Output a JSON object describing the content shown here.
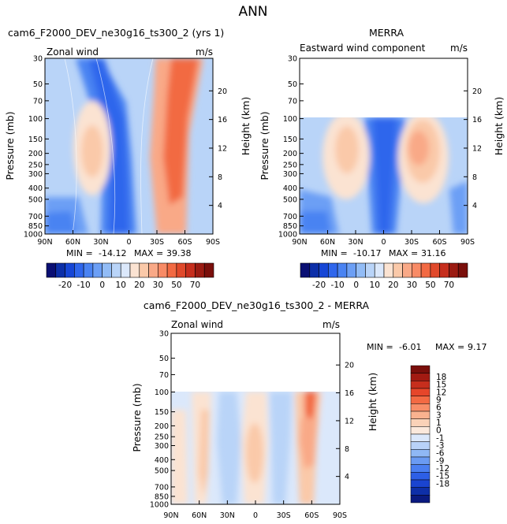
{
  "figure_title": "ANN",
  "chart_data": [
    {
      "type": "heatmap",
      "title": "cam6_F2000_DEV_ne30g16_ts300_2 (yrs 1)",
      "left_label": "Zonal wind",
      "right_label": "m/s",
      "ylabel": "Pressure (mb)",
      "y2label": "Height (km)",
      "x_ticks": [
        "90N",
        "60N",
        "30N",
        "0",
        "30S",
        "60S",
        "90S"
      ],
      "x_values": [
        90,
        60,
        30,
        0,
        -30,
        -60,
        -90
      ],
      "y_ticks": [
        "30",
        "50",
        "70",
        "100",
        "150",
        "200",
        "250",
        "300",
        "400",
        "500",
        "700",
        "850",
        "1000"
      ],
      "y_values": [
        30,
        50,
        70,
        100,
        150,
        200,
        250,
        300,
        400,
        500,
        700,
        850,
        1000
      ],
      "height_ticks": [
        "4",
        "8",
        "12",
        "16",
        "20"
      ],
      "height_values": [
        4,
        8,
        12,
        16,
        20
      ],
      "ylim": [
        30,
        1000
      ],
      "y_scale": "log",
      "data_top": 30,
      "stats": {
        "min_label": "MIN =",
        "min": "-14.12",
        "max_label": "MAX =",
        "max": "39.38"
      },
      "features": [
        {
          "lat": 32,
          "p": 200,
          "value": 17
        },
        {
          "lat": -50,
          "p": 150,
          "value": 32
        },
        {
          "lat": -55,
          "p": 50,
          "value": 39
        },
        {
          "lat": 0,
          "p": 100,
          "value": -10
        },
        {
          "lat": 62,
          "p": 300,
          "value": 8
        },
        {
          "lat": -62,
          "p": 700,
          "value": 9
        }
      ]
    },
    {
      "type": "heatmap",
      "title": "MERRA",
      "left_label": "Eastward wind component",
      "right_label": "m/s",
      "ylabel": "Pressure (mb)",
      "y2label": "Height (km)",
      "x_ticks": [
        "90N",
        "60N",
        "30N",
        "0",
        "30S",
        "60S",
        "90S"
      ],
      "x_values": [
        90,
        60,
        30,
        0,
        -30,
        -60,
        -90
      ],
      "y_ticks": [
        "30",
        "50",
        "70",
        "100",
        "150",
        "200",
        "250",
        "300",
        "400",
        "500",
        "700",
        "850",
        "1000"
      ],
      "y_values": [
        30,
        50,
        70,
        100,
        150,
        200,
        250,
        300,
        400,
        500,
        700,
        850,
        1000
      ],
      "height_ticks": [
        "4",
        "8",
        "12",
        "16",
        "20"
      ],
      "height_values": [
        4,
        8,
        12,
        16,
        20
      ],
      "ylim": [
        30,
        1000
      ],
      "y_scale": "log",
      "data_top": 100,
      "stats": {
        "min_label": "MIN =",
        "min": "-10.17",
        "max_label": "MAX =",
        "max": "31.16"
      },
      "features": [
        {
          "lat": 30,
          "p": 200,
          "value": 22
        },
        {
          "lat": -35,
          "p": 200,
          "value": 28
        },
        {
          "lat": 0,
          "p": 150,
          "value": -8
        },
        {
          "lat": 60,
          "p": 400,
          "value": 6
        },
        {
          "lat": -60,
          "p": 600,
          "value": 7
        }
      ]
    },
    {
      "type": "heatmap",
      "title": "cam6_F2000_DEV_ne30g16_ts300_2 - MERRA",
      "left_label": "Zonal wind",
      "right_label": "m/s",
      "ylabel": "Pressure (mb)",
      "y2label": "Height (km)",
      "x_ticks": [
        "90N",
        "60N",
        "30N",
        "0",
        "30S",
        "60S",
        "90S"
      ],
      "x_values": [
        90,
        60,
        30,
        0,
        -30,
        -60,
        -90
      ],
      "y_ticks": [
        "30",
        "50",
        "70",
        "100",
        "150",
        "200",
        "250",
        "300",
        "400",
        "500",
        "700",
        "850",
        "1000"
      ],
      "y_values": [
        30,
        50,
        70,
        100,
        150,
        200,
        250,
        300,
        400,
        500,
        700,
        850,
        1000
      ],
      "height_ticks": [
        "4",
        "8",
        "12",
        "16",
        "20"
      ],
      "height_values": [
        4,
        8,
        12,
        16,
        20
      ],
      "ylim": [
        30,
        1000
      ],
      "y_scale": "log",
      "data_top": 100,
      "stats": {
        "min_label": "MIN =",
        "min": "-6.01",
        "max_label": "MAX =",
        "max": "9.17"
      },
      "features": [
        {
          "lat": -52,
          "p": 150,
          "value": 9
        },
        {
          "lat": -10,
          "p": 300,
          "value": 3
        },
        {
          "lat": -2,
          "p": 380,
          "value": 2
        },
        {
          "lat": 42,
          "p": 250,
          "value": 2
        },
        {
          "lat": 55,
          "p": 250,
          "value": 2
        },
        {
          "lat": 20,
          "p": 300,
          "value": -2
        },
        {
          "lat": -28,
          "p": 400,
          "value": -2
        },
        {
          "lat": -75,
          "p": 300,
          "value": -1
        }
      ]
    }
  ],
  "colorbars": [
    {
      "orientation": "horizontal",
      "labels": [
        "-20",
        "-10",
        "0",
        "10",
        "20",
        "30",
        "50",
        "70"
      ],
      "label_boundaries": [
        2,
        4,
        6,
        8,
        10,
        12,
        14,
        16
      ],
      "colors": [
        "#0a0f73",
        "#0c2fa8",
        "#1646d6",
        "#2f66ec",
        "#4a83f2",
        "#6c9ff5",
        "#92bcf6",
        "#b9d4f8",
        "#dbe8fb",
        "#fbe3d2",
        "#fac9a9",
        "#f9a987",
        "#f88b66",
        "#f26a43",
        "#e0492b",
        "#c62e1d",
        "#9b1b12",
        "#7a0f0b"
      ],
      "levels": [
        -25,
        -20,
        -15,
        -10,
        -5,
        0,
        5,
        10,
        15,
        20,
        25,
        30,
        40,
        50,
        60,
        70
      ]
    },
    {
      "orientation": "vertical",
      "labels": [
        "18",
        "15",
        "12",
        "9",
        "6",
        "3",
        "1",
        "0",
        "-1",
        "-3",
        "-6",
        "-9",
        "-12",
        "-15",
        "-18"
      ],
      "colors": [
        "#7a0f0b",
        "#a21a12",
        "#c62e1d",
        "#e6462a",
        "#f36a43",
        "#f88e68",
        "#f9b28f",
        "#fad2b8",
        "#fbe9dc",
        "#dbe8fb",
        "#b8d2f8",
        "#8fb8f5",
        "#6a9bf3",
        "#4a7ff1",
        "#2d5fe6",
        "#1a44d0",
        "#0e2fa8",
        "#0a1a80"
      ],
      "levels": [
        -18,
        -15,
        -12,
        -9,
        -6,
        -3,
        -1,
        0,
        1,
        3,
        6,
        9,
        12,
        15,
        18
      ]
    }
  ]
}
